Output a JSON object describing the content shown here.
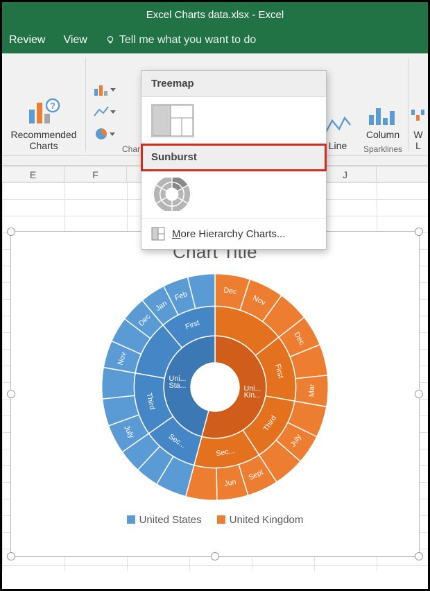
{
  "title": "Excel Charts data.xlsx - Excel",
  "menu": {
    "review": "Review",
    "view": "View",
    "tellme": "Tell me what you want to do"
  },
  "ribbon": {
    "recommended": "Recommended\nCharts",
    "charts_group": "Char",
    "line": "Line",
    "column": "Column",
    "win": "W",
    "win2": "L",
    "sparklines": "Sparklines"
  },
  "dropdown": {
    "treemap": "Treemap",
    "sunburst": "Sunburst",
    "more": "More Hierarchy Charts..."
  },
  "columns": [
    "E",
    "F",
    "",
    "",
    "",
    "J"
  ],
  "chart": {
    "title": "Chart Title",
    "legend": {
      "us": "United States",
      "uk": "United Kingdom"
    },
    "colors": {
      "us": "#5b9bd5",
      "uk": "#ed7d31"
    },
    "inner": [
      {
        "key": "us",
        "label": "Uni...\nSta...",
        "angle": 165
      },
      {
        "key": "uk",
        "label": "Uni...\nKin...",
        "angle": 195
      }
    ],
    "middle": {
      "us": [
        {
          "label": "Sec...",
          "angle": 40
        },
        {
          "label": "Third",
          "angle": 45
        },
        {
          "label": "",
          "angle": 40
        },
        {
          "label": "First",
          "angle": 40
        }
      ],
      "uk": [
        {
          "label": "",
          "angle": 52
        },
        {
          "label": "First",
          "angle": 48
        },
        {
          "label": "Third",
          "angle": 47
        },
        {
          "label": "Sec...",
          "angle": 48
        }
      ]
    },
    "outer": {
      "us": [
        {
          "label": "",
          "angle": 16
        },
        {
          "label": "",
          "angle": 12
        },
        {
          "label": "",
          "angle": 12
        },
        {
          "label": "July",
          "angle": 15
        },
        {
          "label": "",
          "angle": 14
        },
        {
          "label": "",
          "angle": 16
        },
        {
          "label": "Nov",
          "angle": 14
        },
        {
          "label": "",
          "angle": 13
        },
        {
          "label": "Dec",
          "angle": 13
        },
        {
          "label": "Jan",
          "angle": 13
        },
        {
          "label": "Feb",
          "angle": 13
        },
        {
          "label": "",
          "angle": 14
        }
      ],
      "uk": [
        {
          "label": "Dec",
          "angle": 18
        },
        {
          "label": "Nov",
          "angle": 18
        },
        {
          "label": "",
          "angle": 16
        },
        {
          "label": "Dec",
          "angle": 16
        },
        {
          "label": "",
          "angle": 16
        },
        {
          "label": "Mar",
          "angle": 16
        },
        {
          "label": "",
          "angle": 16
        },
        {
          "label": "July",
          "angle": 15
        },
        {
          "label": "",
          "angle": 16
        },
        {
          "label": "Sept",
          "angle": 16
        },
        {
          "label": "Jun",
          "angle": 16
        },
        {
          "label": "",
          "angle": 16
        }
      ]
    }
  }
}
